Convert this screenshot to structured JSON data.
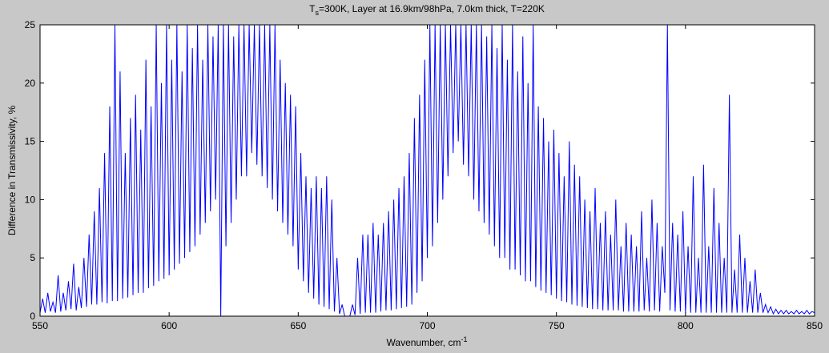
{
  "chart_data": {
    "type": "line",
    "title": [
      "T",
      "s",
      "=300K, Layer at 16.9km/98hPa, 7.0km thick, T=220K"
    ],
    "xlabel": [
      "Wavenumber, cm",
      "-1"
    ],
    "ylabel": "Difference in Transmissivity, %",
    "color": "#0000ff",
    "xlim": [
      550,
      850
    ],
    "ylim": [
      0,
      25
    ],
    "xticks": [
      550,
      600,
      650,
      700,
      750,
      800,
      850
    ],
    "yticks": [
      0,
      5,
      10,
      15,
      20,
      25
    ],
    "grid": false,
    "x": [
      550,
      551,
      552,
      553,
      554,
      555,
      556,
      557,
      558,
      559,
      560,
      561,
      562,
      563,
      564,
      565,
      566,
      567,
      568,
      569,
      570,
      571,
      572,
      573,
      574,
      575,
      576,
      577,
      578,
      579,
      580,
      581,
      582,
      583,
      584,
      585,
      586,
      587,
      588,
      589,
      590,
      591,
      592,
      593,
      594,
      595,
      596,
      597,
      598,
      599,
      600,
      601,
      602,
      603,
      604,
      605,
      606,
      607,
      608,
      609,
      610,
      611,
      612,
      613,
      614,
      615,
      616,
      617,
      618,
      619,
      620,
      621,
      622,
      623,
      624,
      625,
      626,
      627,
      628,
      629,
      630,
      631,
      632,
      633,
      634,
      635,
      636,
      637,
      638,
      639,
      640,
      641,
      642,
      643,
      644,
      645,
      646,
      647,
      648,
      649,
      650,
      651,
      652,
      653,
      654,
      655,
      656,
      657,
      658,
      659,
      660,
      661,
      662,
      663,
      664,
      665,
      666,
      667,
      668,
      669,
      670,
      671,
      672,
      673,
      674,
      675,
      676,
      677,
      678,
      679,
      680,
      681,
      682,
      683,
      684,
      685,
      686,
      687,
      688,
      689,
      690,
      691,
      692,
      693,
      694,
      695,
      696,
      697,
      698,
      699,
      700,
      701,
      702,
      703,
      704,
      705,
      706,
      707,
      708,
      709,
      710,
      711,
      712,
      713,
      714,
      715,
      716,
      717,
      718,
      719,
      720,
      721,
      722,
      723,
      724,
      725,
      726,
      727,
      728,
      729,
      730,
      731,
      732,
      733,
      734,
      735,
      736,
      737,
      738,
      739,
      740,
      741,
      742,
      743,
      744,
      745,
      746,
      747,
      748,
      749,
      750,
      751,
      752,
      753,
      754,
      755,
      756,
      757,
      758,
      759,
      760,
      761,
      762,
      763,
      764,
      765,
      766,
      767,
      768,
      769,
      770,
      771,
      772,
      773,
      774,
      775,
      776,
      777,
      778,
      779,
      780,
      781,
      782,
      783,
      784,
      785,
      786,
      787,
      788,
      789,
      790,
      791,
      792,
      793,
      794,
      795,
      796,
      797,
      798,
      799,
      800,
      801,
      802,
      803,
      804,
      805,
      806,
      807,
      808,
      809,
      810,
      811,
      812,
      813,
      814,
      815,
      816,
      817,
      818,
      819,
      820,
      821,
      822,
      823,
      824,
      825,
      826,
      827,
      828,
      829,
      830,
      831,
      832,
      833,
      834,
      835,
      836,
      837,
      838,
      839,
      840,
      841,
      842,
      843,
      844,
      845,
      846,
      847,
      848,
      849,
      850
    ],
    "values": [
      0.3,
      1.5,
      0.3,
      2,
      0.4,
      1.2,
      0.3,
      3.5,
      0.4,
      2,
      0.5,
      3,
      0.6,
      4.5,
      0.5,
      2.5,
      0.7,
      5,
      0.8,
      7,
      1,
      9,
      1,
      11,
      1.2,
      14,
      1.1,
      18,
      1.3,
      25,
      1.3,
      21,
      1.5,
      14,
      1.6,
      17,
      1.8,
      19,
      2,
      16,
      2,
      22,
      2.4,
      18,
      2.6,
      25,
      3,
      20,
      3.2,
      25,
      3.5,
      22,
      4,
      25,
      4.5,
      21,
      5,
      25,
      5.5,
      23,
      6,
      25,
      7,
      22,
      8,
      25,
      9,
      24,
      10,
      25,
      0,
      25,
      6,
      25,
      8,
      24,
      10,
      25,
      12,
      25,
      12,
      25,
      14,
      25,
      13,
      25,
      12,
      25,
      11,
      25,
      10,
      25,
      9,
      22,
      8,
      20,
      7,
      19,
      6,
      18,
      4,
      14,
      3,
      12,
      2,
      11,
      1.5,
      12,
      1,
      11,
      0.8,
      12,
      0.6,
      10,
      0.4,
      5,
      0.2,
      1,
      0,
      0,
      0,
      1,
      0.1,
      5,
      0.2,
      7,
      0.3,
      7,
      0.3,
      8,
      0.3,
      7,
      0.4,
      8,
      0.5,
      9,
      0.5,
      10,
      0.6,
      11,
      0.7,
      12,
      0.8,
      14,
      1,
      17,
      2,
      19,
      3,
      22,
      5,
      25,
      6,
      25,
      8,
      25,
      10,
      25,
      12,
      25,
      14,
      25,
      15,
      25,
      13,
      25,
      12,
      25,
      10,
      25,
      9,
      25,
      8,
      24,
      7,
      25,
      6,
      23,
      5,
      25,
      5,
      22,
      4,
      25,
      4,
      21,
      3.5,
      24,
      3,
      20,
      3,
      25,
      2.5,
      18,
      2.2,
      17,
      2,
      15,
      1.8,
      16,
      1.5,
      14,
      1.3,
      12,
      1.2,
      15,
      1,
      13,
      0.9,
      12,
      0.8,
      10,
      0.7,
      9,
      0.6,
      11,
      0.6,
      8,
      0.5,
      9,
      0.5,
      7,
      0.5,
      10,
      0.5,
      6,
      0.4,
      8,
      0.4,
      7,
      0.4,
      6,
      0.4,
      9,
      0.5,
      5,
      0.4,
      10,
      0.5,
      8,
      0.4,
      6,
      2,
      25,
      0.5,
      8,
      0.4,
      7,
      0.4,
      9,
      0.3,
      6,
      0.3,
      12,
      0.3,
      5,
      0.3,
      13,
      0.3,
      6,
      0.3,
      11,
      0.3,
      8,
      0.3,
      5,
      0.3,
      19,
      0.3,
      4,
      0.3,
      7,
      0.3,
      5,
      0.3,
      3,
      0.3,
      4,
      0.3,
      2,
      0.3,
      1,
      0.3,
      0.8,
      0.2,
      0.6,
      0.2,
      0.5,
      0.2,
      0.5,
      0.2,
      0.4,
      0.2,
      0.5,
      0.2,
      0.4,
      0.2,
      0.5,
      0.2,
      0.4,
      0.3
    ]
  }
}
